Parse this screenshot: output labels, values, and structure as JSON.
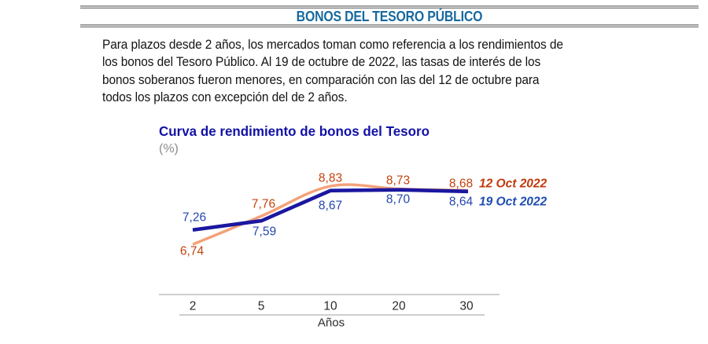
{
  "header": {
    "title": "BONOS DEL TESORO PÚBLICO"
  },
  "paragraph": {
    "lines": [
      "Para plazos desde 2 años, los mercados toman como referencia a los rendimientos de",
      "los bonos del Tesoro Público. Al 19 de octubre de 2022, las tasas de interés de los",
      "bonos soberanos fueron menores, en comparación con las del 12 de octubre para",
      "todos los plazos con excepción del de 2 años."
    ]
  },
  "chart_data": {
    "type": "line",
    "title": "Curva de rendimiento de bonos del Tesoro",
    "unit_label": "(%)",
    "categories": [
      "2",
      "5",
      "10",
      "20",
      "30"
    ],
    "xlabel": "Años",
    "ylim": [
      6.5,
      9.2
    ],
    "grid": false,
    "legend_position": "right-of-line-ends",
    "series": [
      {
        "name": "12 Oct 2022",
        "values": [
          6.74,
          7.76,
          8.83,
          8.73,
          8.68
        ],
        "labels": [
          "6,74",
          "7,76",
          "8,83",
          "8,73",
          "8,68"
        ],
        "line_color": "#f4a178",
        "label_color": "#c2430d",
        "smooth": true
      },
      {
        "name": "19 Oct 2022",
        "values": [
          7.26,
          7.59,
          8.67,
          8.7,
          8.64
        ],
        "labels": [
          "7,26",
          "7,59",
          "8,67",
          "8,70",
          "8,64"
        ],
        "line_color": "#1b17a0",
        "label_color": "#2446ae",
        "smooth": false
      }
    ]
  },
  "colors": {
    "header_title": "#17699e",
    "chart_title": "#1212a6",
    "axis_line": "#cfcfcf"
  }
}
